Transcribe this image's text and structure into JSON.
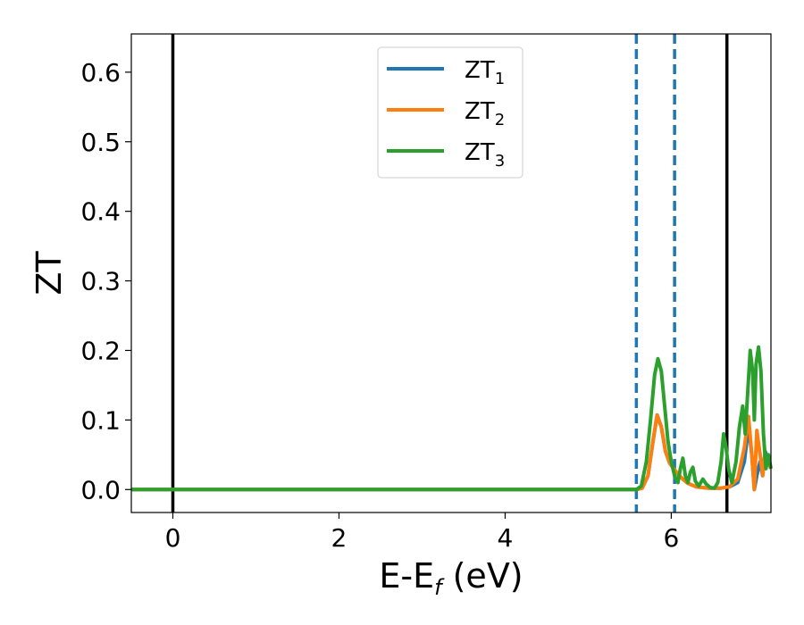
{
  "chart_data": {
    "type": "line",
    "xlabel": {
      "main": "E-E",
      "sub": "f",
      "tail": " (eV)"
    },
    "ylabel": "ZT",
    "xlim": [
      -0.5,
      7.2
    ],
    "ylim": [
      -0.033,
      0.655
    ],
    "xticks": [
      0,
      2,
      4,
      6
    ],
    "yticks": [
      0.0,
      0.1,
      0.2,
      0.3,
      0.4,
      0.5,
      0.6
    ],
    "legend_position": "top-center",
    "vlines": [
      {
        "x": 0.0,
        "style": "solid",
        "color": "#000000"
      },
      {
        "x": 6.67,
        "style": "solid",
        "color": "#000000"
      },
      {
        "x": 5.58,
        "style": "dashed",
        "color": "#1f77b4"
      },
      {
        "x": 6.04,
        "style": "dashed",
        "color": "#1f77b4"
      }
    ],
    "series": [
      {
        "name": "ZT",
        "subscript": "1",
        "color": "#1f77b4",
        "x": [
          -0.5,
          5.58,
          5.65,
          5.72,
          5.78,
          5.83,
          5.88,
          5.93,
          5.98,
          6.03,
          6.08,
          6.14,
          6.2,
          6.3,
          6.45,
          6.6,
          6.7,
          6.8,
          6.88,
          6.93,
          6.97,
          7.0,
          7.03,
          7.07,
          7.1,
          7.13,
          7.2
        ],
        "y": [
          0,
          0,
          0.002,
          0.02,
          0.07,
          0.107,
          0.09,
          0.055,
          0.038,
          0.03,
          0.022,
          0.015,
          0.009,
          0.004,
          0.002,
          0.002,
          0.004,
          0.01,
          0.04,
          0.09,
          0.05,
          0.0,
          0.02,
          0.04,
          0.02,
          0.055,
          0.03
        ]
      },
      {
        "name": "ZT",
        "subscript": "2",
        "color": "#ff7f0e",
        "x": [
          -0.5,
          5.58,
          5.65,
          5.72,
          5.78,
          5.83,
          5.88,
          5.93,
          5.98,
          6.03,
          6.08,
          6.14,
          6.2,
          6.3,
          6.45,
          6.6,
          6.7,
          6.8,
          6.88,
          6.93,
          6.97,
          7.0,
          7.03,
          7.07,
          7.1,
          7.13,
          7.2
        ],
        "y": [
          0,
          0,
          0.002,
          0.02,
          0.07,
          0.107,
          0.09,
          0.055,
          0.038,
          0.03,
          0.022,
          0.015,
          0.009,
          0.004,
          0.002,
          0.002,
          0.004,
          0.015,
          0.06,
          0.105,
          0.05,
          0.0,
          0.085,
          0.05,
          0.02,
          0.05,
          0.03
        ]
      },
      {
        "name": "ZT",
        "subscript": "3",
        "color": "#2ca02c",
        "x": [
          -0.5,
          5.58,
          5.64,
          5.7,
          5.75,
          5.8,
          5.84,
          5.88,
          5.92,
          5.96,
          6.0,
          6.04,
          6.08,
          6.11,
          6.14,
          6.17,
          6.2,
          6.23,
          6.26,
          6.29,
          6.33,
          6.38,
          6.42,
          6.47,
          6.52,
          6.56,
          6.6,
          6.63,
          6.66,
          6.69,
          6.73,
          6.78,
          6.82,
          6.86,
          6.89,
          6.92,
          6.95,
          6.98,
          7.0,
          7.02,
          7.05,
          7.08,
          7.11,
          7.14,
          7.17,
          7.2
        ],
        "y": [
          0,
          0,
          0.005,
          0.04,
          0.1,
          0.165,
          0.188,
          0.17,
          0.12,
          0.07,
          0.04,
          0.02,
          0.01,
          0.03,
          0.045,
          0.02,
          0.01,
          0.025,
          0.032,
          0.012,
          0.005,
          0.015,
          0.008,
          0.003,
          0.002,
          0.01,
          0.04,
          0.08,
          0.06,
          0.03,
          0.01,
          0.04,
          0.09,
          0.12,
          0.08,
          0.14,
          0.2,
          0.17,
          0.1,
          0.18,
          0.205,
          0.17,
          0.08,
          0.03,
          0.05,
          0.03
        ]
      }
    ]
  }
}
